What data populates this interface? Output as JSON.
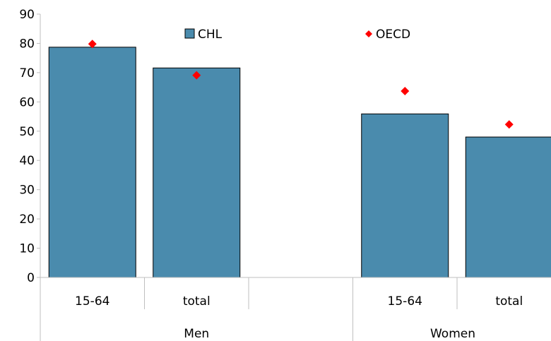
{
  "chart_data": {
    "type": "bar",
    "groups": [
      {
        "label": "Men",
        "categories": [
          "15-64",
          "total"
        ]
      },
      {
        "label": "Women",
        "categories": [
          "15-64",
          "total"
        ]
      }
    ],
    "categories": [
      "15-64",
      "total",
      "",
      "15-64",
      "total"
    ],
    "series": [
      {
        "name": "CHL",
        "kind": "bar",
        "color": "#4a8bad",
        "values": [
          78.7,
          71.6,
          null,
          55.9,
          48.0
        ]
      },
      {
        "name": "OECD",
        "kind": "marker",
        "marker": "diamond",
        "color": "#ff0000",
        "values": [
          79.8,
          69.1,
          null,
          63.7,
          52.3
        ]
      }
    ],
    "ylim": [
      0,
      90
    ],
    "yticks": [
      0,
      10,
      20,
      30,
      40,
      50,
      60,
      70,
      80,
      90
    ],
    "grid": false,
    "legend": "top-center",
    "title": "",
    "xlabel": "",
    "ylabel": ""
  }
}
